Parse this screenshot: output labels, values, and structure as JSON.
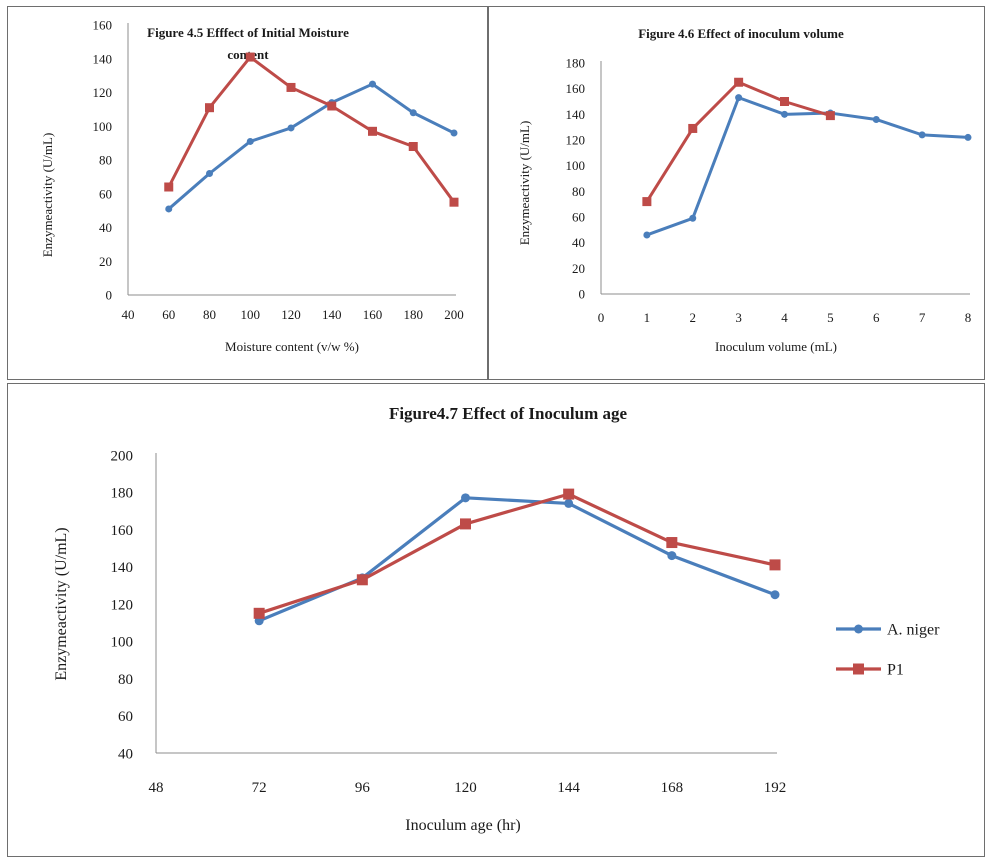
{
  "chart_data": [
    {
      "type": "line",
      "title": "Figure 4.5 Efffect of Initial Moisture content",
      "title_lines": [
        "Figure 4.5 Efffect of Initial Moisture",
        "content"
      ],
      "xlabel": "Moisture content (v/w %)",
      "ylabel": "Enzymeactivity (U/mL)",
      "xlim": [
        40,
        200
      ],
      "ylim": [
        0,
        160
      ],
      "xticks": [
        40,
        60,
        80,
        100,
        120,
        140,
        160,
        180,
        200
      ],
      "yticks": [
        0,
        20,
        40,
        60,
        80,
        100,
        120,
        140,
        160
      ],
      "grid": false,
      "legend": false,
      "series": [
        {
          "color": "#4a7ebb",
          "marker": "circle",
          "x": [
            60,
            80,
            100,
            120,
            140,
            160,
            180,
            200
          ],
          "values": [
            51,
            72,
            91,
            99,
            114,
            125,
            108,
            96
          ]
        },
        {
          "color": "#be4b48",
          "marker": "square",
          "x": [
            60,
            80,
            100,
            120,
            140,
            160,
            180,
            200
          ],
          "values": [
            64,
            111,
            141,
            123,
            112,
            97,
            88,
            55
          ]
        }
      ]
    },
    {
      "type": "line",
      "title": "Figure 4.6 Effect of inoculum volume",
      "title_lines": [
        "Figure 4.6 Effect of inoculum volume"
      ],
      "xlabel": "Inoculum volume (mL)",
      "ylabel": "Enzymeactivity (U/mL)",
      "xlim": [
        0,
        8
      ],
      "ylim": [
        0,
        180
      ],
      "xticks": [
        0,
        1,
        2,
        3,
        4,
        5,
        6,
        7,
        8
      ],
      "yticks": [
        0,
        20,
        40,
        60,
        80,
        100,
        120,
        140,
        160,
        180
      ],
      "grid": false,
      "legend": false,
      "series": [
        {
          "color": "#4a7ebb",
          "marker": "circle",
          "x": [
            1,
            2,
            3,
            4,
            5,
            6,
            7,
            8
          ],
          "values": [
            46,
            59,
            153,
            140,
            141,
            136,
            124,
            122
          ]
        },
        {
          "color": "#be4b48",
          "marker": "square",
          "x": [
            1,
            2,
            3,
            4,
            5
          ],
          "values": [
            72,
            129,
            165,
            150,
            139
          ]
        }
      ]
    },
    {
      "type": "line",
      "title": "Figure4.7 Effect of Inoculum age",
      "title_lines": [
        "Figure4.7 Effect of Inoculum age"
      ],
      "xlabel": "Inoculum age (hr)",
      "ylabel": "Enzymeactivity (U/mL)",
      "xlim": [
        48,
        192
      ],
      "ylim": [
        40,
        200
      ],
      "xticks": [
        48,
        72,
        96,
        120,
        144,
        168,
        192
      ],
      "yticks": [
        40,
        60,
        80,
        100,
        120,
        140,
        160,
        180,
        200
      ],
      "grid": false,
      "legend": "right",
      "series": [
        {
          "name": "A. niger",
          "color": "#4a7ebb",
          "marker": "circle",
          "x": [
            72,
            96,
            120,
            144,
            168,
            192
          ],
          "values": [
            111,
            134,
            177,
            174,
            146,
            125
          ]
        },
        {
          "name": "P1",
          "color": "#be4b48",
          "marker": "square",
          "x": [
            72,
            96,
            120,
            144,
            168,
            192
          ],
          "values": [
            115,
            133,
            163,
            179,
            153,
            141
          ]
        }
      ]
    }
  ]
}
